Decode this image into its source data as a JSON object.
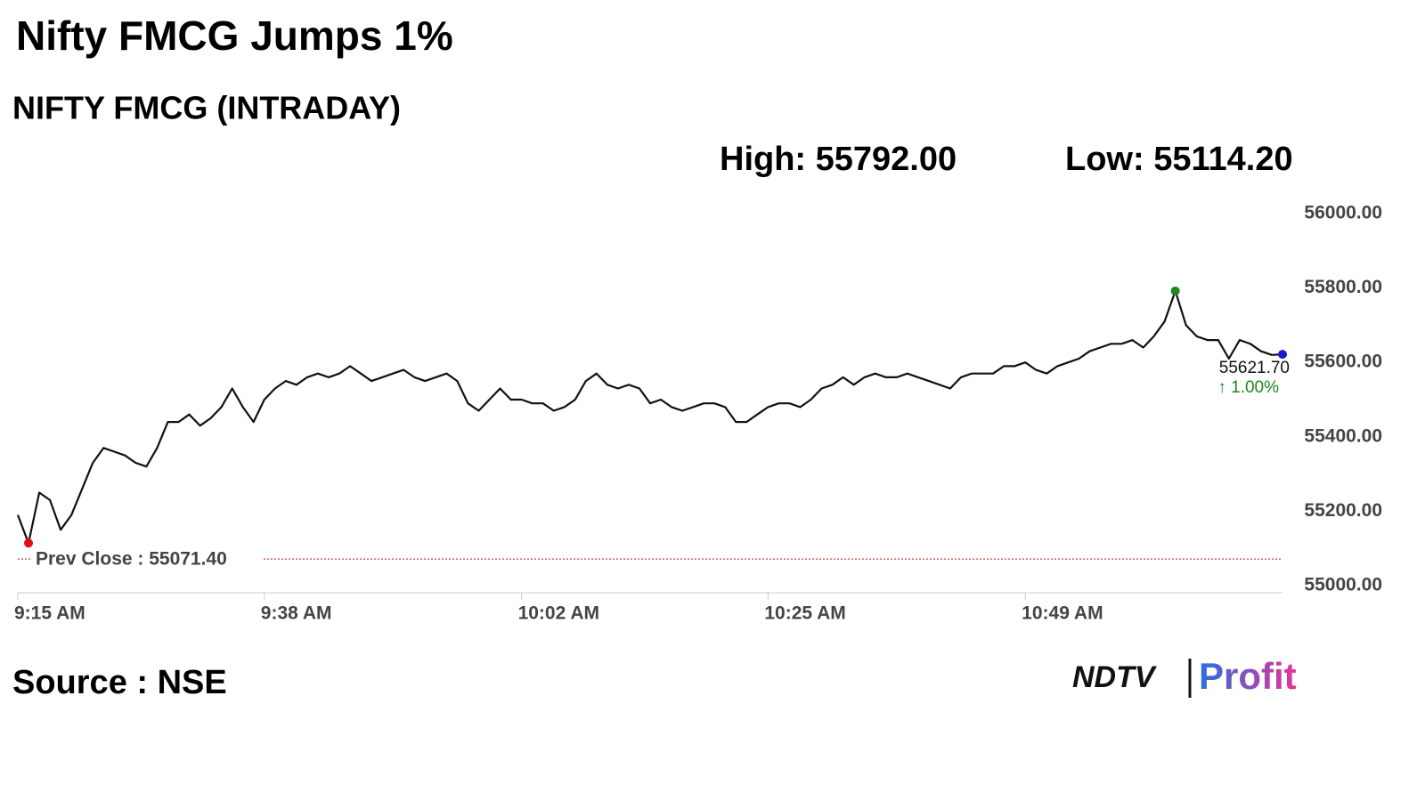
{
  "chart_data": {
    "type": "line",
    "title": "Nifty FMCG Jumps 1%",
    "subtitle": "NIFTY FMCG (INTRADAY)",
    "high": {
      "value": 55792,
      "label": "High: 55792.00"
    },
    "low": {
      "value": 55114.2,
      "label": "Low: 55114.20"
    },
    "prev_close": {
      "value": 55071.4,
      "label": "Prev Close : 55071.40"
    },
    "last": {
      "value": 55621.7,
      "label": "55621.70"
    },
    "change_label": "↑ 1.00%",
    "source": "Source : NSE",
    "brand": {
      "left": "NDTV",
      "right": "Profit"
    },
    "color": "#111111",
    "high_color": "#1a8a1a",
    "low_color": "#e01010",
    "last_color": "#1a1acc",
    "prev_close_color": "#d04040",
    "change_color": "#1a8a1a",
    "categories": [
      "9:15 AM",
      null,
      null,
      null,
      null,
      null,
      null,
      null,
      null,
      null,
      null,
      null,
      null,
      null,
      null,
      null,
      null,
      null,
      null,
      null,
      null,
      null,
      null,
      "9:38 AM",
      null,
      null,
      null,
      null,
      null,
      null,
      null,
      null,
      null,
      null,
      null,
      null,
      null,
      null,
      null,
      null,
      null,
      null,
      null,
      null,
      null,
      null,
      null,
      "10:02 AM",
      null,
      null,
      null,
      null,
      null,
      null,
      null,
      null,
      null,
      null,
      null,
      null,
      null,
      null,
      null,
      null,
      null,
      null,
      null,
      null,
      null,
      null,
      "10:25 AM",
      null,
      null,
      null,
      null,
      null,
      null,
      null,
      null,
      null,
      null,
      null,
      null,
      null,
      null,
      null,
      null,
      null,
      null,
      null,
      null,
      null,
      null,
      null,
      "10:49 AM",
      null,
      null,
      null,
      null,
      null,
      null,
      null,
      null,
      null,
      null,
      null,
      null,
      null,
      null,
      null,
      null,
      null,
      null,
      null,
      null,
      null,
      null,
      null,
      null
    ],
    "values": [
      55190,
      55114.2,
      55250,
      55230,
      55150,
      55190,
      55260,
      55330,
      55370,
      55360,
      55350,
      55330,
      55320,
      55370,
      55440,
      55440,
      55460,
      55430,
      55450,
      55480,
      55530,
      55480,
      55440,
      55500,
      55530,
      55550,
      55540,
      55560,
      55570,
      55560,
      55570,
      55590,
      55570,
      55550,
      55560,
      55570,
      55580,
      55560,
      55550,
      55560,
      55570,
      55550,
      55490,
      55470,
      55500,
      55530,
      55500,
      55500,
      55490,
      55490,
      55470,
      55480,
      55500,
      55550,
      55570,
      55540,
      55530,
      55540,
      55530,
      55490,
      55500,
      55480,
      55470,
      55480,
      55490,
      55490,
      55480,
      55440,
      55440,
      55460,
      55480,
      55490,
      55490,
      55480,
      55500,
      55530,
      55540,
      55560,
      55540,
      55560,
      55570,
      55560,
      55560,
      55570,
      55560,
      55550,
      55540,
      55530,
      55560,
      55570,
      55570,
      55570,
      55590,
      55590,
      55600,
      55580,
      55570,
      55590,
      55600,
      55610,
      55630,
      55640,
      55650,
      55650,
      55660,
      55640,
      55670,
      55710,
      55792,
      55700,
      55670,
      55660,
      55660,
      55610,
      55660,
      55650,
      55630,
      55620,
      55621.7
    ],
    "ylim": [
      55000,
      56000
    ],
    "yticks": [
      {
        "value": 55000,
        "label": "55000.00"
      },
      {
        "value": 55200,
        "label": "55200.00"
      },
      {
        "value": 55400,
        "label": "55400.00"
      },
      {
        "value": 55600,
        "label": "55600.00"
      },
      {
        "value": 55800,
        "label": "55800.00"
      },
      {
        "value": 56000,
        "label": "56000.00"
      }
    ]
  }
}
